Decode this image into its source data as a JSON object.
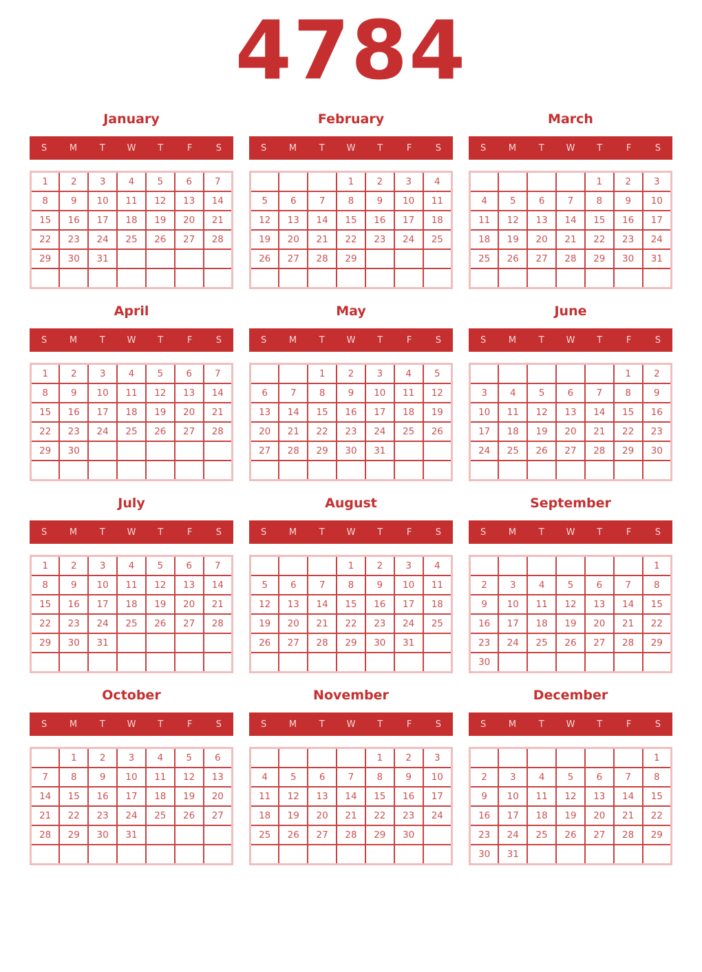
{
  "year": "4784",
  "weekdays": [
    "S",
    "M",
    "T",
    "W",
    "T",
    "F",
    "S"
  ],
  "colors": {
    "accent_red": "#C62F2F",
    "day_text": "#CC4F4F",
    "cell_border": "#CA4040",
    "outer_border": "#F2BDBD",
    "weekday_text": "#F2DBDB",
    "background": "#FFFFFF"
  },
  "months": [
    {
      "name": "January",
      "weeks": [
        [
          "1",
          "2",
          "3",
          "4",
          "5",
          "6",
          "7"
        ],
        [
          "8",
          "9",
          "10",
          "11",
          "12",
          "13",
          "14"
        ],
        [
          "15",
          "16",
          "17",
          "18",
          "19",
          "20",
          "21"
        ],
        [
          "22",
          "23",
          "24",
          "25",
          "26",
          "27",
          "28"
        ],
        [
          "29",
          "30",
          "31",
          "",
          "",
          "",
          ""
        ],
        [
          "",
          "",
          "",
          "",
          "",
          "",
          ""
        ]
      ]
    },
    {
      "name": "February",
      "weeks": [
        [
          "",
          "",
          "",
          "1",
          "2",
          "3",
          "4"
        ],
        [
          "5",
          "6",
          "7",
          "8",
          "9",
          "10",
          "11"
        ],
        [
          "12",
          "13",
          "14",
          "15",
          "16",
          "17",
          "18"
        ],
        [
          "19",
          "20",
          "21",
          "22",
          "23",
          "24",
          "25"
        ],
        [
          "26",
          "27",
          "28",
          "29",
          "",
          "",
          ""
        ],
        [
          "",
          "",
          "",
          "",
          "",
          "",
          ""
        ]
      ]
    },
    {
      "name": "March",
      "weeks": [
        [
          "",
          "",
          "",
          "",
          "1",
          "2",
          "3"
        ],
        [
          "4",
          "5",
          "6",
          "7",
          "8",
          "9",
          "10"
        ],
        [
          "11",
          "12",
          "13",
          "14",
          "15",
          "16",
          "17"
        ],
        [
          "18",
          "19",
          "20",
          "21",
          "22",
          "23",
          "24"
        ],
        [
          "25",
          "26",
          "27",
          "28",
          "29",
          "30",
          "31"
        ],
        [
          "",
          "",
          "",
          "",
          "",
          "",
          ""
        ]
      ]
    },
    {
      "name": "April",
      "weeks": [
        [
          "1",
          "2",
          "3",
          "4",
          "5",
          "6",
          "7"
        ],
        [
          "8",
          "9",
          "10",
          "11",
          "12",
          "13",
          "14"
        ],
        [
          "15",
          "16",
          "17",
          "18",
          "19",
          "20",
          "21"
        ],
        [
          "22",
          "23",
          "24",
          "25",
          "26",
          "27",
          "28"
        ],
        [
          "29",
          "30",
          "",
          "",
          "",
          "",
          ""
        ],
        [
          "",
          "",
          "",
          "",
          "",
          "",
          ""
        ]
      ]
    },
    {
      "name": "May",
      "weeks": [
        [
          "",
          "",
          "1",
          "2",
          "3",
          "4",
          "5"
        ],
        [
          "6",
          "7",
          "8",
          "9",
          "10",
          "11",
          "12"
        ],
        [
          "13",
          "14",
          "15",
          "16",
          "17",
          "18",
          "19"
        ],
        [
          "20",
          "21",
          "22",
          "23",
          "24",
          "25",
          "26"
        ],
        [
          "27",
          "28",
          "29",
          "30",
          "31",
          "",
          ""
        ],
        [
          "",
          "",
          "",
          "",
          "",
          "",
          ""
        ]
      ]
    },
    {
      "name": "June",
      "weeks": [
        [
          "",
          "",
          "",
          "",
          "",
          "1",
          "2"
        ],
        [
          "3",
          "4",
          "5",
          "6",
          "7",
          "8",
          "9"
        ],
        [
          "10",
          "11",
          "12",
          "13",
          "14",
          "15",
          "16"
        ],
        [
          "17",
          "18",
          "19",
          "20",
          "21",
          "22",
          "23"
        ],
        [
          "24",
          "25",
          "26",
          "27",
          "28",
          "29",
          "30"
        ],
        [
          "",
          "",
          "",
          "",
          "",
          "",
          ""
        ]
      ]
    },
    {
      "name": "July",
      "weeks": [
        [
          "1",
          "2",
          "3",
          "4",
          "5",
          "6",
          "7"
        ],
        [
          "8",
          "9",
          "10",
          "11",
          "12",
          "13",
          "14"
        ],
        [
          "15",
          "16",
          "17",
          "18",
          "19",
          "20",
          "21"
        ],
        [
          "22",
          "23",
          "24",
          "25",
          "26",
          "27",
          "28"
        ],
        [
          "29",
          "30",
          "31",
          "",
          "",
          "",
          ""
        ],
        [
          "",
          "",
          "",
          "",
          "",
          "",
          ""
        ]
      ]
    },
    {
      "name": "August",
      "weeks": [
        [
          "",
          "",
          "",
          "1",
          "2",
          "3",
          "4"
        ],
        [
          "5",
          "6",
          "7",
          "8",
          "9",
          "10",
          "11"
        ],
        [
          "12",
          "13",
          "14",
          "15",
          "16",
          "17",
          "18"
        ],
        [
          "19",
          "20",
          "21",
          "22",
          "23",
          "24",
          "25"
        ],
        [
          "26",
          "27",
          "28",
          "29",
          "30",
          "31",
          ""
        ],
        [
          "",
          "",
          "",
          "",
          "",
          "",
          ""
        ]
      ]
    },
    {
      "name": "September",
      "weeks": [
        [
          "",
          "",
          "",
          "",
          "",
          "",
          "1"
        ],
        [
          "2",
          "3",
          "4",
          "5",
          "6",
          "7",
          "8"
        ],
        [
          "9",
          "10",
          "11",
          "12",
          "13",
          "14",
          "15"
        ],
        [
          "16",
          "17",
          "18",
          "19",
          "20",
          "21",
          "22"
        ],
        [
          "23",
          "24",
          "25",
          "26",
          "27",
          "28",
          "29"
        ],
        [
          "30",
          "",
          "",
          "",
          "",
          "",
          ""
        ]
      ]
    },
    {
      "name": "October",
      "weeks": [
        [
          "",
          "1",
          "2",
          "3",
          "4",
          "5",
          "6"
        ],
        [
          "7",
          "8",
          "9",
          "10",
          "11",
          "12",
          "13"
        ],
        [
          "14",
          "15",
          "16",
          "17",
          "18",
          "19",
          "20"
        ],
        [
          "21",
          "22",
          "23",
          "24",
          "25",
          "26",
          "27"
        ],
        [
          "28",
          "29",
          "30",
          "31",
          "",
          "",
          ""
        ],
        [
          "",
          "",
          "",
          "",
          "",
          "",
          ""
        ]
      ]
    },
    {
      "name": "November",
      "weeks": [
        [
          "",
          "",
          "",
          "",
          "1",
          "2",
          "3"
        ],
        [
          "4",
          "5",
          "6",
          "7",
          "8",
          "9",
          "10"
        ],
        [
          "11",
          "12",
          "13",
          "14",
          "15",
          "16",
          "17"
        ],
        [
          "18",
          "19",
          "20",
          "21",
          "22",
          "23",
          "24"
        ],
        [
          "25",
          "26",
          "27",
          "28",
          "29",
          "30",
          ""
        ],
        [
          "",
          "",
          "",
          "",
          "",
          "",
          ""
        ]
      ]
    },
    {
      "name": "December",
      "weeks": [
        [
          "",
          "",
          "",
          "",
          "",
          "",
          "1"
        ],
        [
          "2",
          "3",
          "4",
          "5",
          "6",
          "7",
          "8"
        ],
        [
          "9",
          "10",
          "11",
          "12",
          "13",
          "14",
          "15"
        ],
        [
          "16",
          "17",
          "18",
          "19",
          "20",
          "21",
          "22"
        ],
        [
          "23",
          "24",
          "25",
          "26",
          "27",
          "28",
          "29"
        ],
        [
          "30",
          "31",
          "",
          "",
          "",
          "",
          ""
        ]
      ]
    }
  ]
}
